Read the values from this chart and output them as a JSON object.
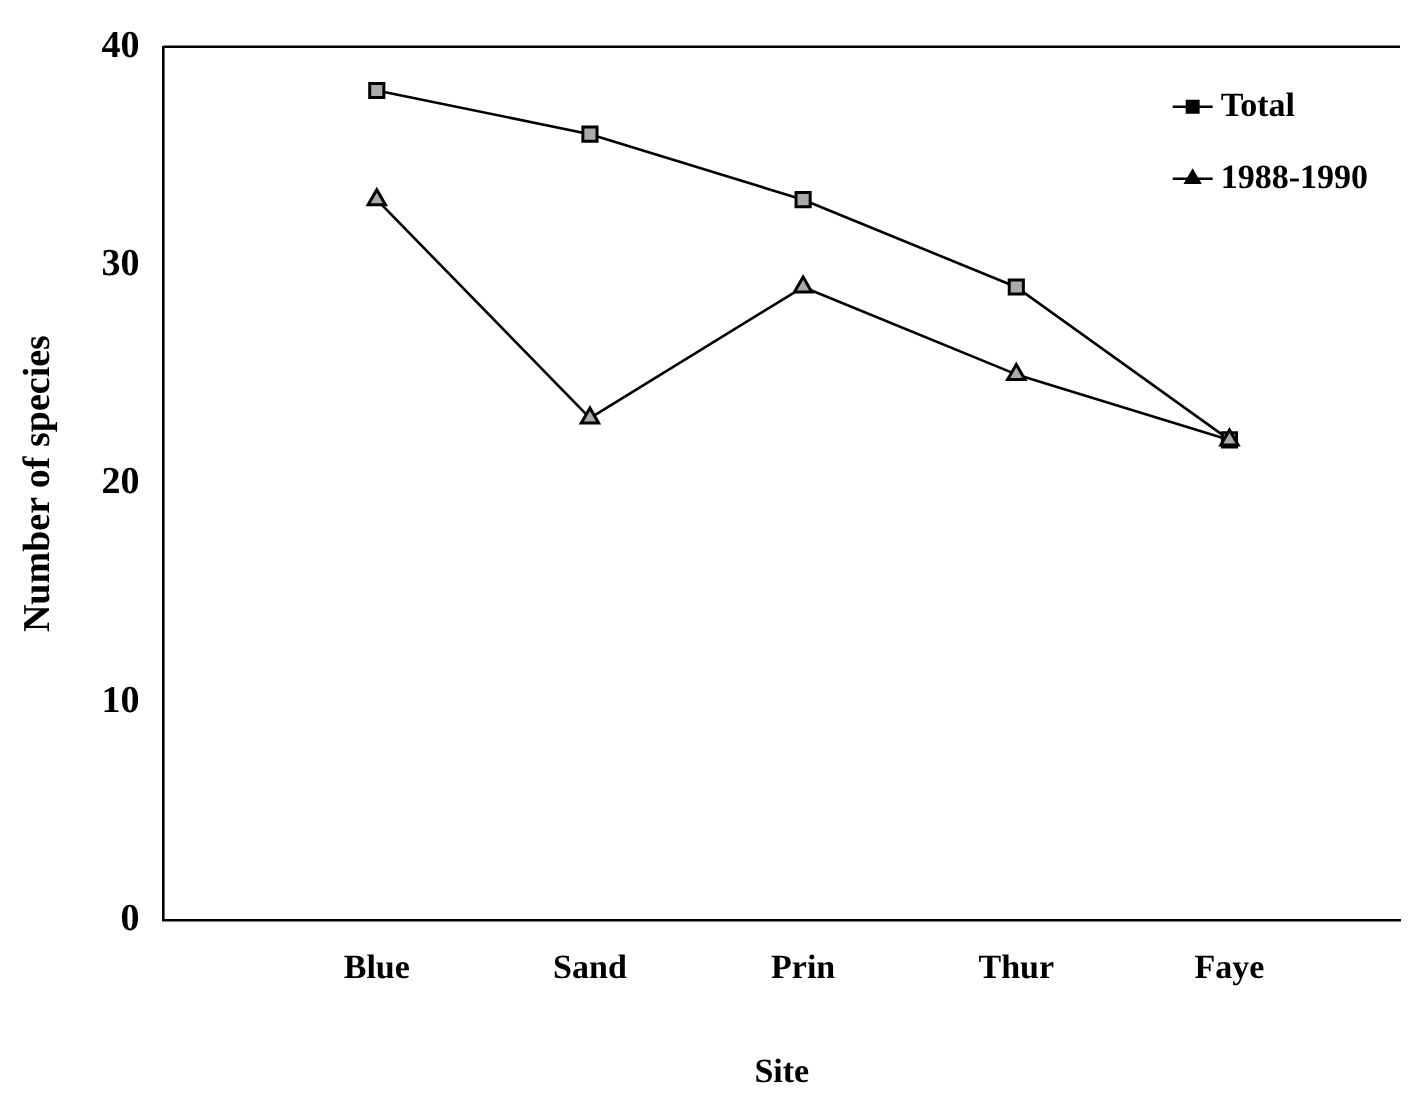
{
  "chart_data": {
    "type": "line",
    "xlabel": "Site",
    "ylabel": "Number of species",
    "categories": [
      "Blue",
      "Sand",
      "Prin",
      "Thur",
      "Faye"
    ],
    "series": [
      {
        "name": "Total",
        "color": "#000000",
        "marker": "square",
        "values": [
          38,
          36,
          33,
          29,
          22
        ]
      },
      {
        "name": "1988-1990",
        "color": "#000000",
        "marker": "triangle",
        "values": [
          33,
          23,
          29,
          25,
          22
        ]
      }
    ],
    "ylim": [
      0,
      40
    ],
    "yticks": [
      0,
      10,
      20,
      30,
      40
    ],
    "grid": false,
    "legend": "top right",
    "line_style": "solid"
  }
}
